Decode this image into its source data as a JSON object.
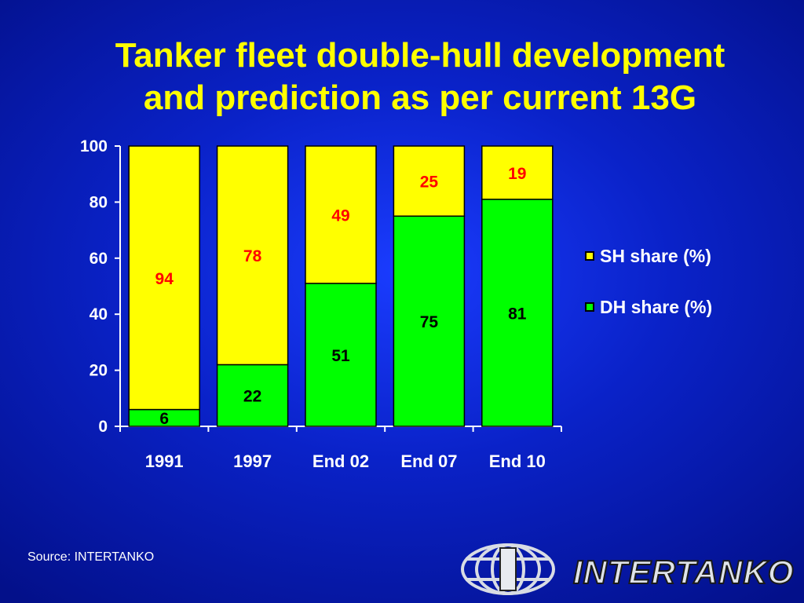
{
  "title_line1": "Tanker fleet double-hull development",
  "title_line2": "and prediction as per current 13G",
  "source": "Source: INTERTANKO",
  "logo_text": "INTERTANKO",
  "colors": {
    "sh": "#ffff00",
    "dh": "#00ff00",
    "sh_label": "#ff0000",
    "dh_label": "#000000"
  },
  "chart_data": {
    "type": "bar",
    "stacked": true,
    "categories": [
      "1991",
      "1997",
      "End 02",
      "End 07",
      "End 10"
    ],
    "series": [
      {
        "name": "DH share (%)",
        "values": [
          6,
          22,
          51,
          75,
          81
        ]
      },
      {
        "name": "SH share (%)",
        "values": [
          94,
          78,
          49,
          25,
          19
        ]
      }
    ],
    "ylim": [
      0,
      100
    ],
    "yticks": [
      0,
      20,
      40,
      60,
      80,
      100
    ],
    "legend": "right"
  },
  "legend": [
    {
      "label": "SH share (%)",
      "color": "#ffff00"
    },
    {
      "label": "DH share (%)",
      "color": "#00ff00"
    }
  ]
}
